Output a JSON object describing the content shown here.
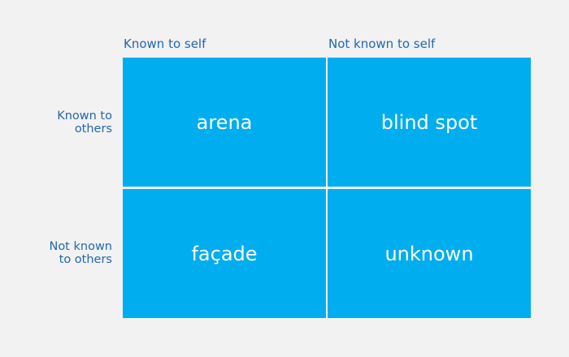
{
  "column_headers": [
    "Known to self",
    "Not known to self"
  ],
  "row_headers": [
    [
      "Known to",
      "others"
    ],
    [
      "Not known",
      "to others"
    ]
  ],
  "cells": [
    [
      "arena",
      "blind spot"
    ],
    [
      "façade",
      "unknown"
    ]
  ]
}
